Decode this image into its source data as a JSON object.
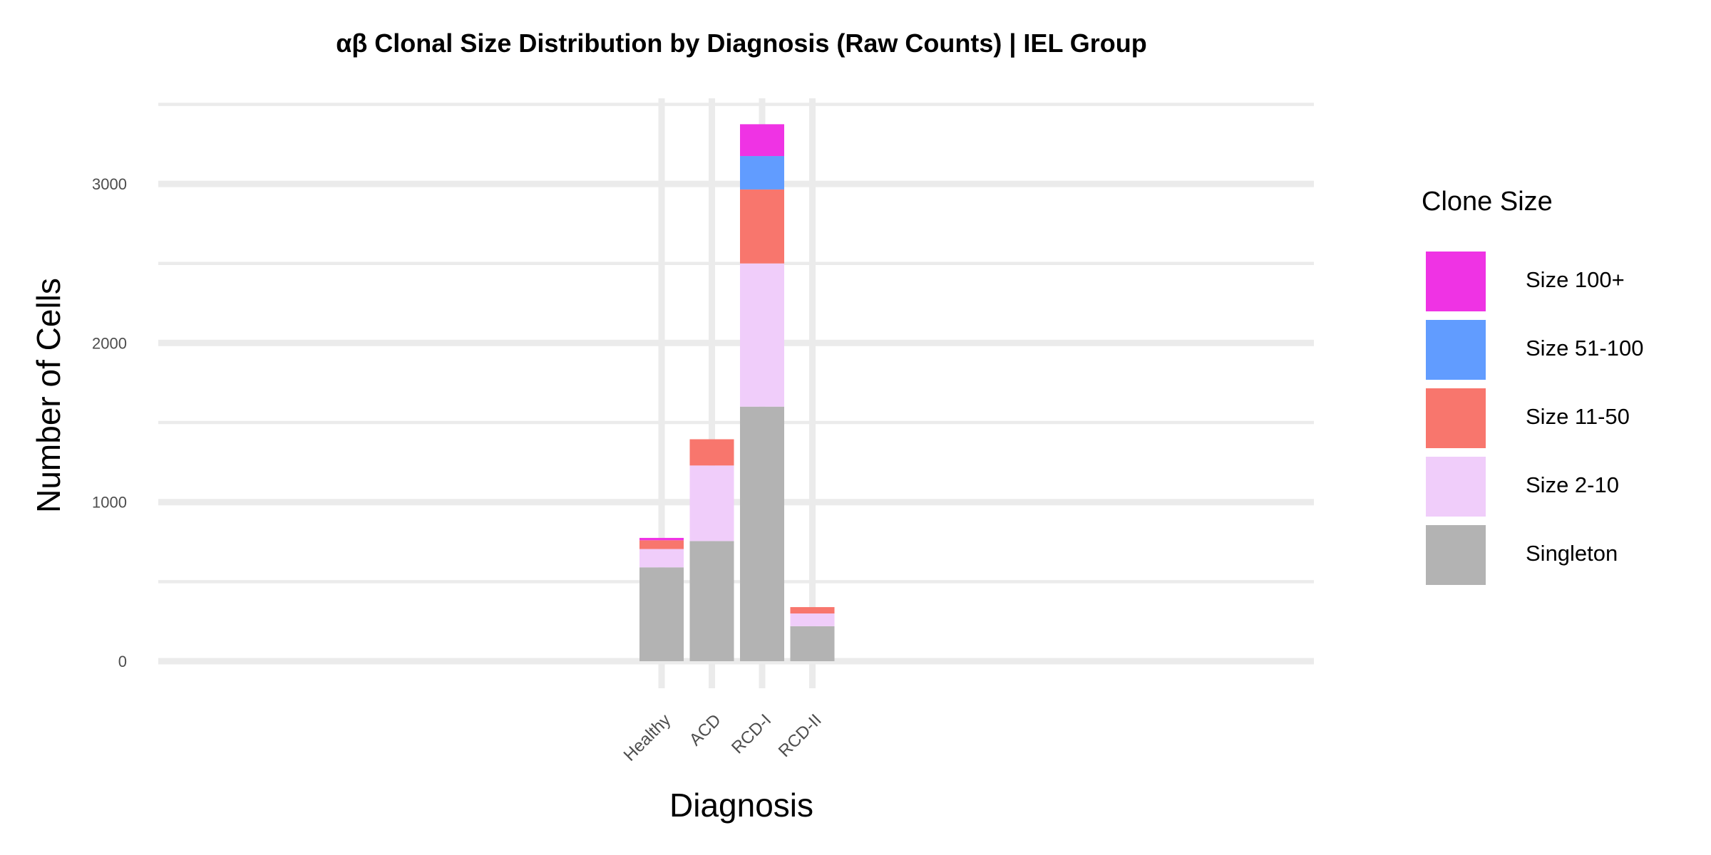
{
  "chart_data": {
    "type": "bar",
    "stacked": true,
    "title": "αβ Clonal Size Distribution by Diagnosis (Raw Counts) | IEL Group",
    "xlabel": "Diagnosis",
    "ylabel": "Number of Cells",
    "categories": [
      "Healthy",
      "ACD",
      "RCD-I",
      "RCD-II"
    ],
    "ylim": [
      -160,
      3560
    ],
    "yticks": [
      0,
      1000,
      2000,
      3000
    ],
    "grid": true,
    "legend_title": "Clone Size",
    "legend_position": "right",
    "series": [
      {
        "name": "Singleton",
        "color": "#b3b3b3",
        "values": [
          590,
          755,
          1600,
          220
        ]
      },
      {
        "name": "Size 2-10",
        "color": "#f0cdfa",
        "values": [
          115,
          475,
          900,
          80
        ]
      },
      {
        "name": "Size 11-50",
        "color": "#f8766d",
        "values": [
          55,
          165,
          465,
          40
        ]
      },
      {
        "name": "Size 51-100",
        "color": "#619cff",
        "values": [
          0,
          0,
          210,
          0
        ]
      },
      {
        "name": "Size 100+",
        "color": "#ef33e4",
        "values": [
          15,
          0,
          200,
          0
        ]
      }
    ]
  }
}
